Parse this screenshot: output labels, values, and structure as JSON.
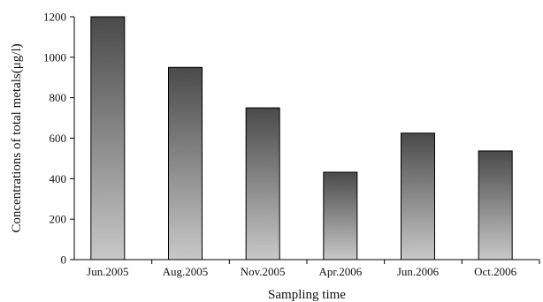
{
  "chart_data": {
    "type": "bar",
    "title": "",
    "xlabel": "Sampling time",
    "ylabel": "Concentrations of total metals(μg/l)",
    "categories": [
      "Jun.2005",
      "Aug.2005",
      "Nov.2005",
      "Apr.2006",
      "Jun.2006",
      "Oct.2006"
    ],
    "values": [
      1200,
      950,
      750,
      432,
      625,
      537
    ],
    "ylim": [
      0,
      1200
    ],
    "yticks": [
      0,
      200,
      400,
      600,
      800,
      1000,
      1200
    ],
    "grid": false,
    "legend": "none",
    "colors": {
      "bar_top": "#4a4a4a",
      "bar_bottom": "#c8c8c8",
      "axis": "#000000"
    }
  }
}
